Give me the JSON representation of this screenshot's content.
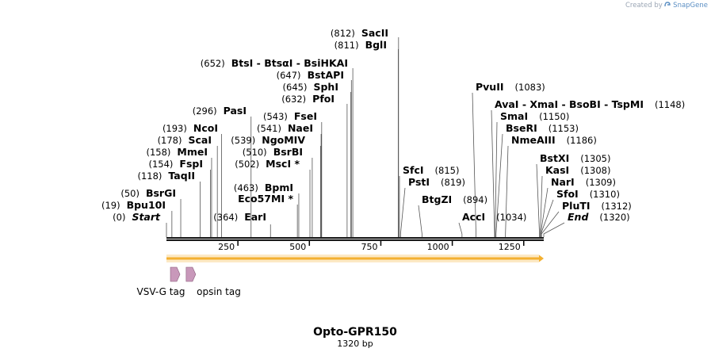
{
  "credit": {
    "prefix": "Created by",
    "brand": "SnapGene",
    "icon": "snapgene-logo-icon"
  },
  "title": "Opto-GPR150",
  "subtitle": "1320 bp",
  "sequence_length": 1320,
  "ruler_ticks": [
    {
      "value": 250,
      "label": "250"
    },
    {
      "value": 500,
      "label": "500"
    },
    {
      "value": 750,
      "label": "750"
    },
    {
      "value": 1000,
      "label": "1000"
    },
    {
      "value": 1250,
      "label": "1250"
    }
  ],
  "features": [
    {
      "name": "VSV-G tag",
      "start": 50,
      "end": 80,
      "color": "#c898ba",
      "direction": "forward"
    },
    {
      "name": "opsin tag",
      "start": 105,
      "end": 140,
      "color": "#c898ba",
      "direction": "forward"
    }
  ],
  "orf": {
    "start": 0,
    "end": 1320,
    "color": "#f3b030",
    "direction": "forward"
  },
  "sites": [
    {
      "name": "Start",
      "pos_label": "(0)",
      "position": 0,
      "italic": true
    },
    {
      "name": "Bpu10I",
      "pos_label": "(19)",
      "position": 19
    },
    {
      "name": "BsrGI",
      "pos_label": "(50)",
      "position": 50
    },
    {
      "name": "TaqII",
      "pos_label": "(118)",
      "position": 118
    },
    {
      "name": "FspI",
      "pos_label": "(154)",
      "position": 154
    },
    {
      "name": "MmeI",
      "pos_label": "(158)",
      "position": 158
    },
    {
      "name": "ScaI",
      "pos_label": "(178)",
      "position": 178
    },
    {
      "name": "NcoI",
      "pos_label": "(193)",
      "position": 193
    },
    {
      "name": "PasI",
      "pos_label": "(296)",
      "position": 296
    },
    {
      "name": "EarI",
      "pos_label": "(364)",
      "position": 364
    },
    {
      "name": "Eco57MI *",
      "pos_label": "",
      "position": 458
    },
    {
      "name": "BpmI",
      "pos_label": "(463)",
      "position": 463
    },
    {
      "name": "MscI *",
      "pos_label": "(502)",
      "position": 502
    },
    {
      "name": "BsrBI",
      "pos_label": "(510)",
      "position": 510
    },
    {
      "name": "NgoMIV",
      "pos_label": "(539)",
      "position": 539
    },
    {
      "name": "NaeI",
      "pos_label": "(541)",
      "position": 541
    },
    {
      "name": "FseI",
      "pos_label": "(543)",
      "position": 543
    },
    {
      "name": "PfoI",
      "pos_label": "(632)",
      "position": 632
    },
    {
      "name": "SphI",
      "pos_label": "(645)",
      "position": 645
    },
    {
      "name": "BstAPI",
      "pos_label": "(647)",
      "position": 647
    },
    {
      "name": "BtsI - BtsαI - BsiHKAI",
      "pos_label": "(652)",
      "position": 652
    },
    {
      "name": "BglI",
      "pos_label": "(811)",
      "position": 811
    },
    {
      "name": "SacII",
      "pos_label": "(812)",
      "position": 812
    },
    {
      "name": "SfcI",
      "pos_label": "(815)",
      "position": 815
    },
    {
      "name": "PstI",
      "pos_label": "(819)",
      "position": 819
    },
    {
      "name": "BtgZI",
      "pos_label": "(894)",
      "position": 894
    },
    {
      "name": "AccI",
      "pos_label": "(1034)",
      "position": 1034
    },
    {
      "name": "PvuII",
      "pos_label": "(1083)",
      "position": 1083
    },
    {
      "name": "AvaI - XmaI - BsoBI - TspMI",
      "pos_label": "(1148)",
      "position": 1148
    },
    {
      "name": "SmaI",
      "pos_label": "(1150)",
      "position": 1150
    },
    {
      "name": "BseRI",
      "pos_label": "(1153)",
      "position": 1153
    },
    {
      "name": "NmeAIII",
      "pos_label": "(1186)",
      "position": 1186
    },
    {
      "name": "BstXI",
      "pos_label": "(1305)",
      "position": 1305
    },
    {
      "name": "KasI",
      "pos_label": "(1308)",
      "position": 1308
    },
    {
      "name": "NarI",
      "pos_label": "(1309)",
      "position": 1309
    },
    {
      "name": "SfoI",
      "pos_label": "(1310)",
      "position": 1310
    },
    {
      "name": "PluTI",
      "pos_label": "(1312)",
      "position": 1312
    },
    {
      "name": "End",
      "pos_label": "(1320)",
      "position": 1320,
      "italic": true
    }
  ]
}
